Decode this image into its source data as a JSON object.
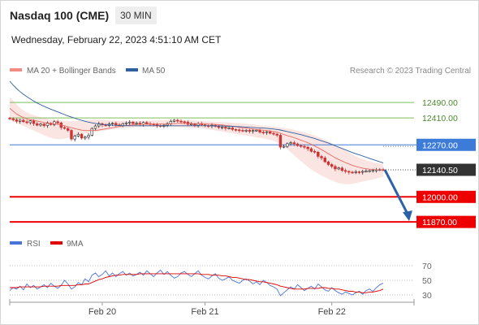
{
  "header": {
    "title": "Nasdaq 100 (CME)",
    "interval": "30 MIN",
    "datetime": "Wednesday, February 22, 2023 4:51:10 AM CET"
  },
  "legend": {
    "items": [
      {
        "label": "MA 20 + Bollinger Bands",
        "color": "#f28b82"
      },
      {
        "label": "MA 50",
        "color": "#2f5f9e"
      }
    ],
    "credit": "Research © 2023 Trading Central"
  },
  "rsi_legend": {
    "items": [
      {
        "label": "RSI",
        "color": "#4a74d8"
      },
      {
        "label": "9MA",
        "color": "#e00000"
      }
    ]
  },
  "colors": {
    "resistance_line": "#7fbf5a",
    "pivot_line": "#3d7bd9",
    "support_line": "#ee0000",
    "last_price_tag": "#333333",
    "forecast_arrow": "#2d62a8",
    "candle_up": "#2a2a2a",
    "candle_down": "#cc3333"
  },
  "chart_data": [
    {
      "type": "candlestick",
      "title": "",
      "x": {
        "tick_labels": [
          "Feb 20",
          "Feb 21",
          "Feb 22"
        ]
      },
      "y": {
        "ylim": [
          11820,
          12600
        ]
      },
      "levels": [
        {
          "value": 12490.0,
          "label": "12490.00",
          "role": "resistance"
        },
        {
          "value": 12410.0,
          "label": "12410.00",
          "role": "resistance"
        },
        {
          "value": 12270.0,
          "label": "12270.00",
          "role": "pivot"
        },
        {
          "value": 12140.5,
          "label": "12140.50",
          "role": "last"
        },
        {
          "value": 12000.0,
          "label": "12000.00",
          "role": "support"
        },
        {
          "value": 11870.0,
          "label": "11870.00",
          "role": "support"
        }
      ],
      "close": [
        12405,
        12400,
        12392,
        12398,
        12390,
        12385,
        12395,
        12380,
        12372,
        12378,
        12370,
        12382,
        12375,
        12390,
        12384,
        12360,
        12355,
        12345,
        12300,
        12315,
        12325,
        12305,
        12310,
        12320,
        12355,
        12368,
        12380,
        12374,
        12370,
        12378,
        12382,
        12374,
        12370,
        12380,
        12384,
        12388,
        12380,
        12383,
        12377,
        12386,
        12380,
        12378,
        12376,
        12370,
        12366,
        12372,
        12380,
        12392,
        12398,
        12393,
        12390,
        12388,
        12376,
        12378,
        12372,
        12380,
        12374,
        12370,
        12368,
        12372,
        12366,
        12360,
        12362,
        12356,
        12358,
        12350,
        12348,
        12345,
        12342,
        12346,
        12340,
        12344,
        12346,
        12336,
        12334,
        12338,
        12330,
        12326,
        12320,
        12258,
        12262,
        12276,
        12281,
        12275,
        12266,
        12262,
        12258,
        12250,
        12236,
        12232,
        12210,
        12202,
        12182,
        12168,
        12158,
        12145,
        12150,
        12137,
        12132,
        12128,
        12126,
        12130,
        12128,
        12132,
        12134,
        12136,
        12138,
        12140,
        12142,
        12140.5
      ],
      "ma20": [
        12460,
        12445,
        12430,
        12420,
        12412,
        12405,
        12400,
        12398,
        12394,
        12390,
        12386,
        12384,
        12382,
        12380,
        12377,
        12373,
        12369,
        12364,
        12359,
        12354,
        12350,
        12346,
        12344,
        12344,
        12344,
        12345,
        12347,
        12350,
        12353,
        12356,
        12359,
        12362,
        12365,
        12368,
        12370,
        12372,
        12374,
        12375,
        12376,
        12377,
        12377,
        12378,
        12378,
        12378,
        12378,
        12378,
        12378,
        12379,
        12380,
        12381,
        12381,
        12381,
        12381,
        12380,
        12380,
        12380,
        12380,
        12379,
        12378,
        12377,
        12376,
        12375,
        12373,
        12371,
        12369,
        12366,
        12364,
        12361,
        12359,
        12357,
        12354,
        12352,
        12350,
        12348,
        12346,
        12344,
        12342,
        12339,
        12336,
        12330,
        12324,
        12318,
        12313,
        12307,
        12301,
        12294,
        12288,
        12281,
        12273,
        12264,
        12255,
        12245,
        12235,
        12224,
        12214,
        12203,
        12194,
        12186,
        12178,
        12171,
        12164,
        12158,
        12153,
        12149,
        12146,
        12144,
        12142,
        12141,
        12141,
        12141
      ],
      "bb_upper": [
        12520,
        12500,
        12480,
        12462,
        12448,
        12438,
        12430,
        12424,
        12418,
        12414,
        12410,
        12406,
        12403,
        12400,
        12398,
        12396,
        12394,
        12392,
        12392,
        12392,
        12394,
        12396,
        12398,
        12400,
        12402,
        12402,
        12402,
        12401,
        12400,
        12398,
        12396,
        12396,
        12395,
        12395,
        12395,
        12395,
        12395,
        12395,
        12395,
        12395,
        12395,
        12395,
        12396,
        12397,
        12398,
        12399,
        12400,
        12400,
        12400,
        12400,
        12400,
        12399,
        12398,
        12397,
        12396,
        12395,
        12394,
        12393,
        12392,
        12391,
        12390,
        12389,
        12388,
        12387,
        12386,
        12385,
        12384,
        12383,
        12382,
        12380,
        12378,
        12376,
        12374,
        12372,
        12370,
        12368,
        12366,
        12364,
        12362,
        12360,
        12358,
        12355,
        12352,
        12348,
        12344,
        12340,
        12335,
        12330,
        12324,
        12318,
        12311,
        12304,
        12296,
        12288,
        12279,
        12270,
        12260,
        12250,
        12240,
        12230,
        12220,
        12211,
        12203,
        12196,
        12190,
        12185,
        12180,
        12176,
        12173,
        12170
      ],
      "bb_lower": [
        12400,
        12392,
        12384,
        12376,
        12368,
        12360,
        12352,
        12344,
        12336,
        12328,
        12320,
        12313,
        12307,
        12302,
        12300,
        12300,
        12302,
        12306,
        12310,
        12315,
        12320,
        12324,
        12327,
        12330,
        12333,
        12336,
        12339,
        12342,
        12345,
        12348,
        12350,
        12352,
        12354,
        12356,
        12358,
        12360,
        12361,
        12362,
        12363,
        12363,
        12363,
        12363,
        12363,
        12363,
        12363,
        12363,
        12363,
        12363,
        12363,
        12362,
        12361,
        12360,
        12359,
        12358,
        12357,
        12356,
        12354,
        12352,
        12350,
        12348,
        12345,
        12342,
        12339,
        12336,
        12333,
        12330,
        12327,
        12324,
        12321,
        12318,
        12315,
        12312,
        12309,
        12306,
        12303,
        12300,
        12296,
        12291,
        12284,
        12274,
        12262,
        12248,
        12232,
        12216,
        12200,
        12185,
        12170,
        12155,
        12142,
        12130,
        12120,
        12110,
        12101,
        12093,
        12085,
        12078,
        12072,
        12068,
        12066,
        12066,
        12068,
        12071,
        12075,
        12079,
        12083,
        12087,
        12091,
        12095,
        12099,
        12104
      ],
      "ma50": [
        12600,
        12580,
        12562,
        12546,
        12532,
        12520,
        12508,
        12497,
        12487,
        12478,
        12470,
        12462,
        12455,
        12448,
        12441,
        12434,
        12427,
        12420,
        12414,
        12408,
        12402,
        12397,
        12392,
        12388,
        12384,
        12381,
        12378,
        12376,
        12374,
        12373,
        12372,
        12371,
        12370,
        12369,
        12369,
        12369,
        12369,
        12369,
        12369,
        12369,
        12369,
        12369,
        12369,
        12369,
        12369,
        12369,
        12369,
        12369,
        12369,
        12369,
        12369,
        12369,
        12369,
        12369,
        12369,
        12369,
        12369,
        12369,
        12369,
        12369,
        12368,
        12368,
        12368,
        12367,
        12367,
        12366,
        12365,
        12364,
        12363,
        12362,
        12361,
        12360,
        12359,
        12358,
        12357,
        12356,
        12354,
        12352,
        12350,
        12347,
        12343,
        12339,
        12335,
        12331,
        12327,
        12323,
        12318,
        12313,
        12308,
        12303,
        12297,
        12291,
        12285,
        12279,
        12272,
        12265,
        12258,
        12251,
        12244,
        12237,
        12230,
        12224,
        12218,
        12212,
        12206,
        12200,
        12194,
        12188,
        12182,
        12176
      ],
      "forecast": {
        "from": 12140.5,
        "to": 11870.0
      }
    },
    {
      "type": "line",
      "title": "",
      "y": {
        "ylim": [
          20,
          80
        ],
        "tick_labels": [
          "70",
          "50",
          "30"
        ]
      },
      "series": [
        {
          "name": "RSI",
          "values": [
            36,
            40,
            38,
            42,
            37,
            45,
            40,
            43,
            38,
            41,
            44,
            40,
            46,
            42,
            39,
            43,
            50,
            45,
            38,
            41,
            47,
            44,
            52,
            48,
            57,
            60,
            55,
            58,
            63,
            56,
            60,
            55,
            59,
            62,
            57,
            60,
            56,
            58,
            61,
            57,
            63,
            59,
            55,
            60,
            64,
            58,
            62,
            57,
            53,
            55,
            60,
            62,
            58,
            55,
            59,
            63,
            57,
            54,
            52,
            56,
            59,
            53,
            50,
            52,
            55,
            50,
            48,
            46,
            50,
            52,
            49,
            45,
            48,
            44,
            50,
            47,
            43,
            41,
            38,
            29,
            33,
            37,
            41,
            38,
            44,
            40,
            36,
            39,
            42,
            38,
            45,
            41,
            37,
            35,
            40,
            36,
            33,
            31,
            34,
            32,
            30,
            33,
            35,
            31,
            36,
            38,
            35,
            40,
            44,
            46
          ]
        },
        {
          "name": "9MA",
          "values": [
            40,
            40,
            40,
            41,
            41,
            41,
            41,
            41,
            41,
            41,
            42,
            42,
            42,
            42,
            42,
            43,
            43,
            43,
            43,
            43,
            44,
            44,
            45,
            45,
            47,
            49,
            51,
            52,
            54,
            55,
            56,
            57,
            57,
            58,
            58,
            58,
            58,
            58,
            59,
            59,
            59,
            59,
            59,
            59,
            59,
            59,
            59,
            59,
            59,
            59,
            59,
            59,
            59,
            59,
            59,
            59,
            58,
            58,
            58,
            57,
            57,
            57,
            56,
            56,
            55,
            54,
            54,
            53,
            52,
            51,
            51,
            50,
            49,
            48,
            48,
            47,
            46,
            45,
            44,
            42,
            41,
            40,
            39,
            38,
            38,
            38,
            38,
            39,
            39,
            39,
            39,
            40,
            40,
            39,
            39,
            38,
            38,
            37,
            36,
            35,
            35,
            34,
            34,
            33,
            33,
            34,
            34,
            35,
            36,
            38
          ]
        }
      ]
    }
  ]
}
